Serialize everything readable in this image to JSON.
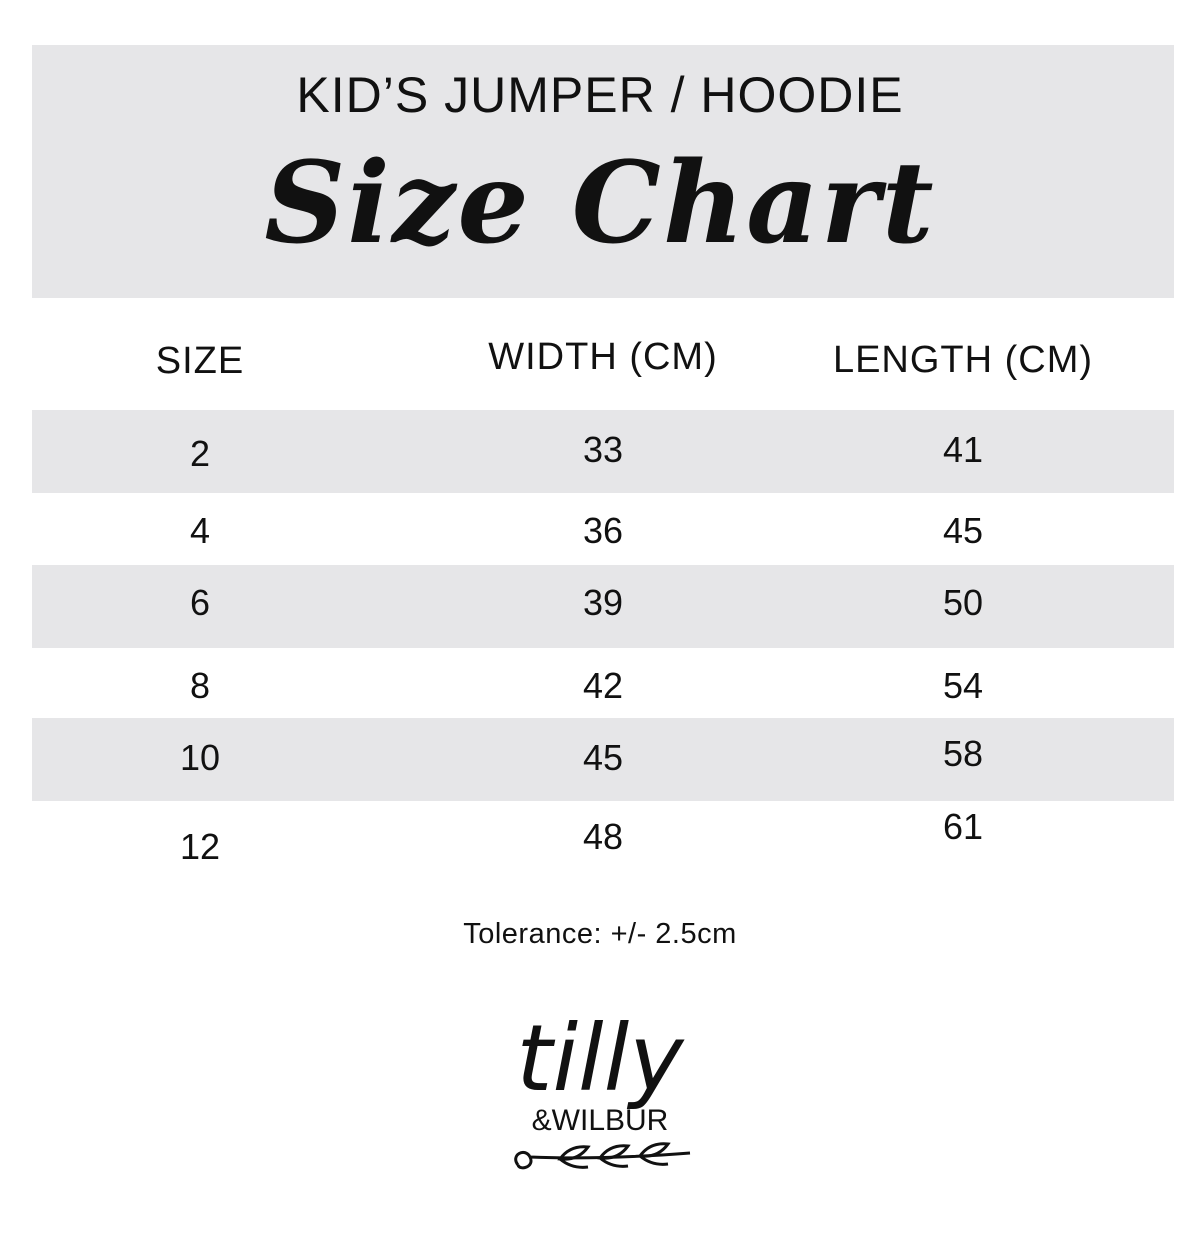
{
  "header": {
    "subtitle": "KID’S JUMPER / HOODIE",
    "title": "Size Chart"
  },
  "table": {
    "columns": [
      "SIZE",
      "WIDTH (CM)",
      "LENGTH (CM)"
    ],
    "rows": [
      [
        "2",
        "33",
        "41"
      ],
      [
        "4",
        "36",
        "45"
      ],
      [
        "6",
        "39",
        "50"
      ],
      [
        "8",
        "42",
        "54"
      ],
      [
        "10",
        "45",
        "58"
      ],
      [
        "12",
        "48",
        "61"
      ]
    ]
  },
  "tolerance": "Tolerance: +/- 2.5cm",
  "logo": {
    "line1": "tilly",
    "line2": "&WILBUR"
  },
  "colors": {
    "shade": "#e6e6e8",
    "text": "#111111"
  }
}
